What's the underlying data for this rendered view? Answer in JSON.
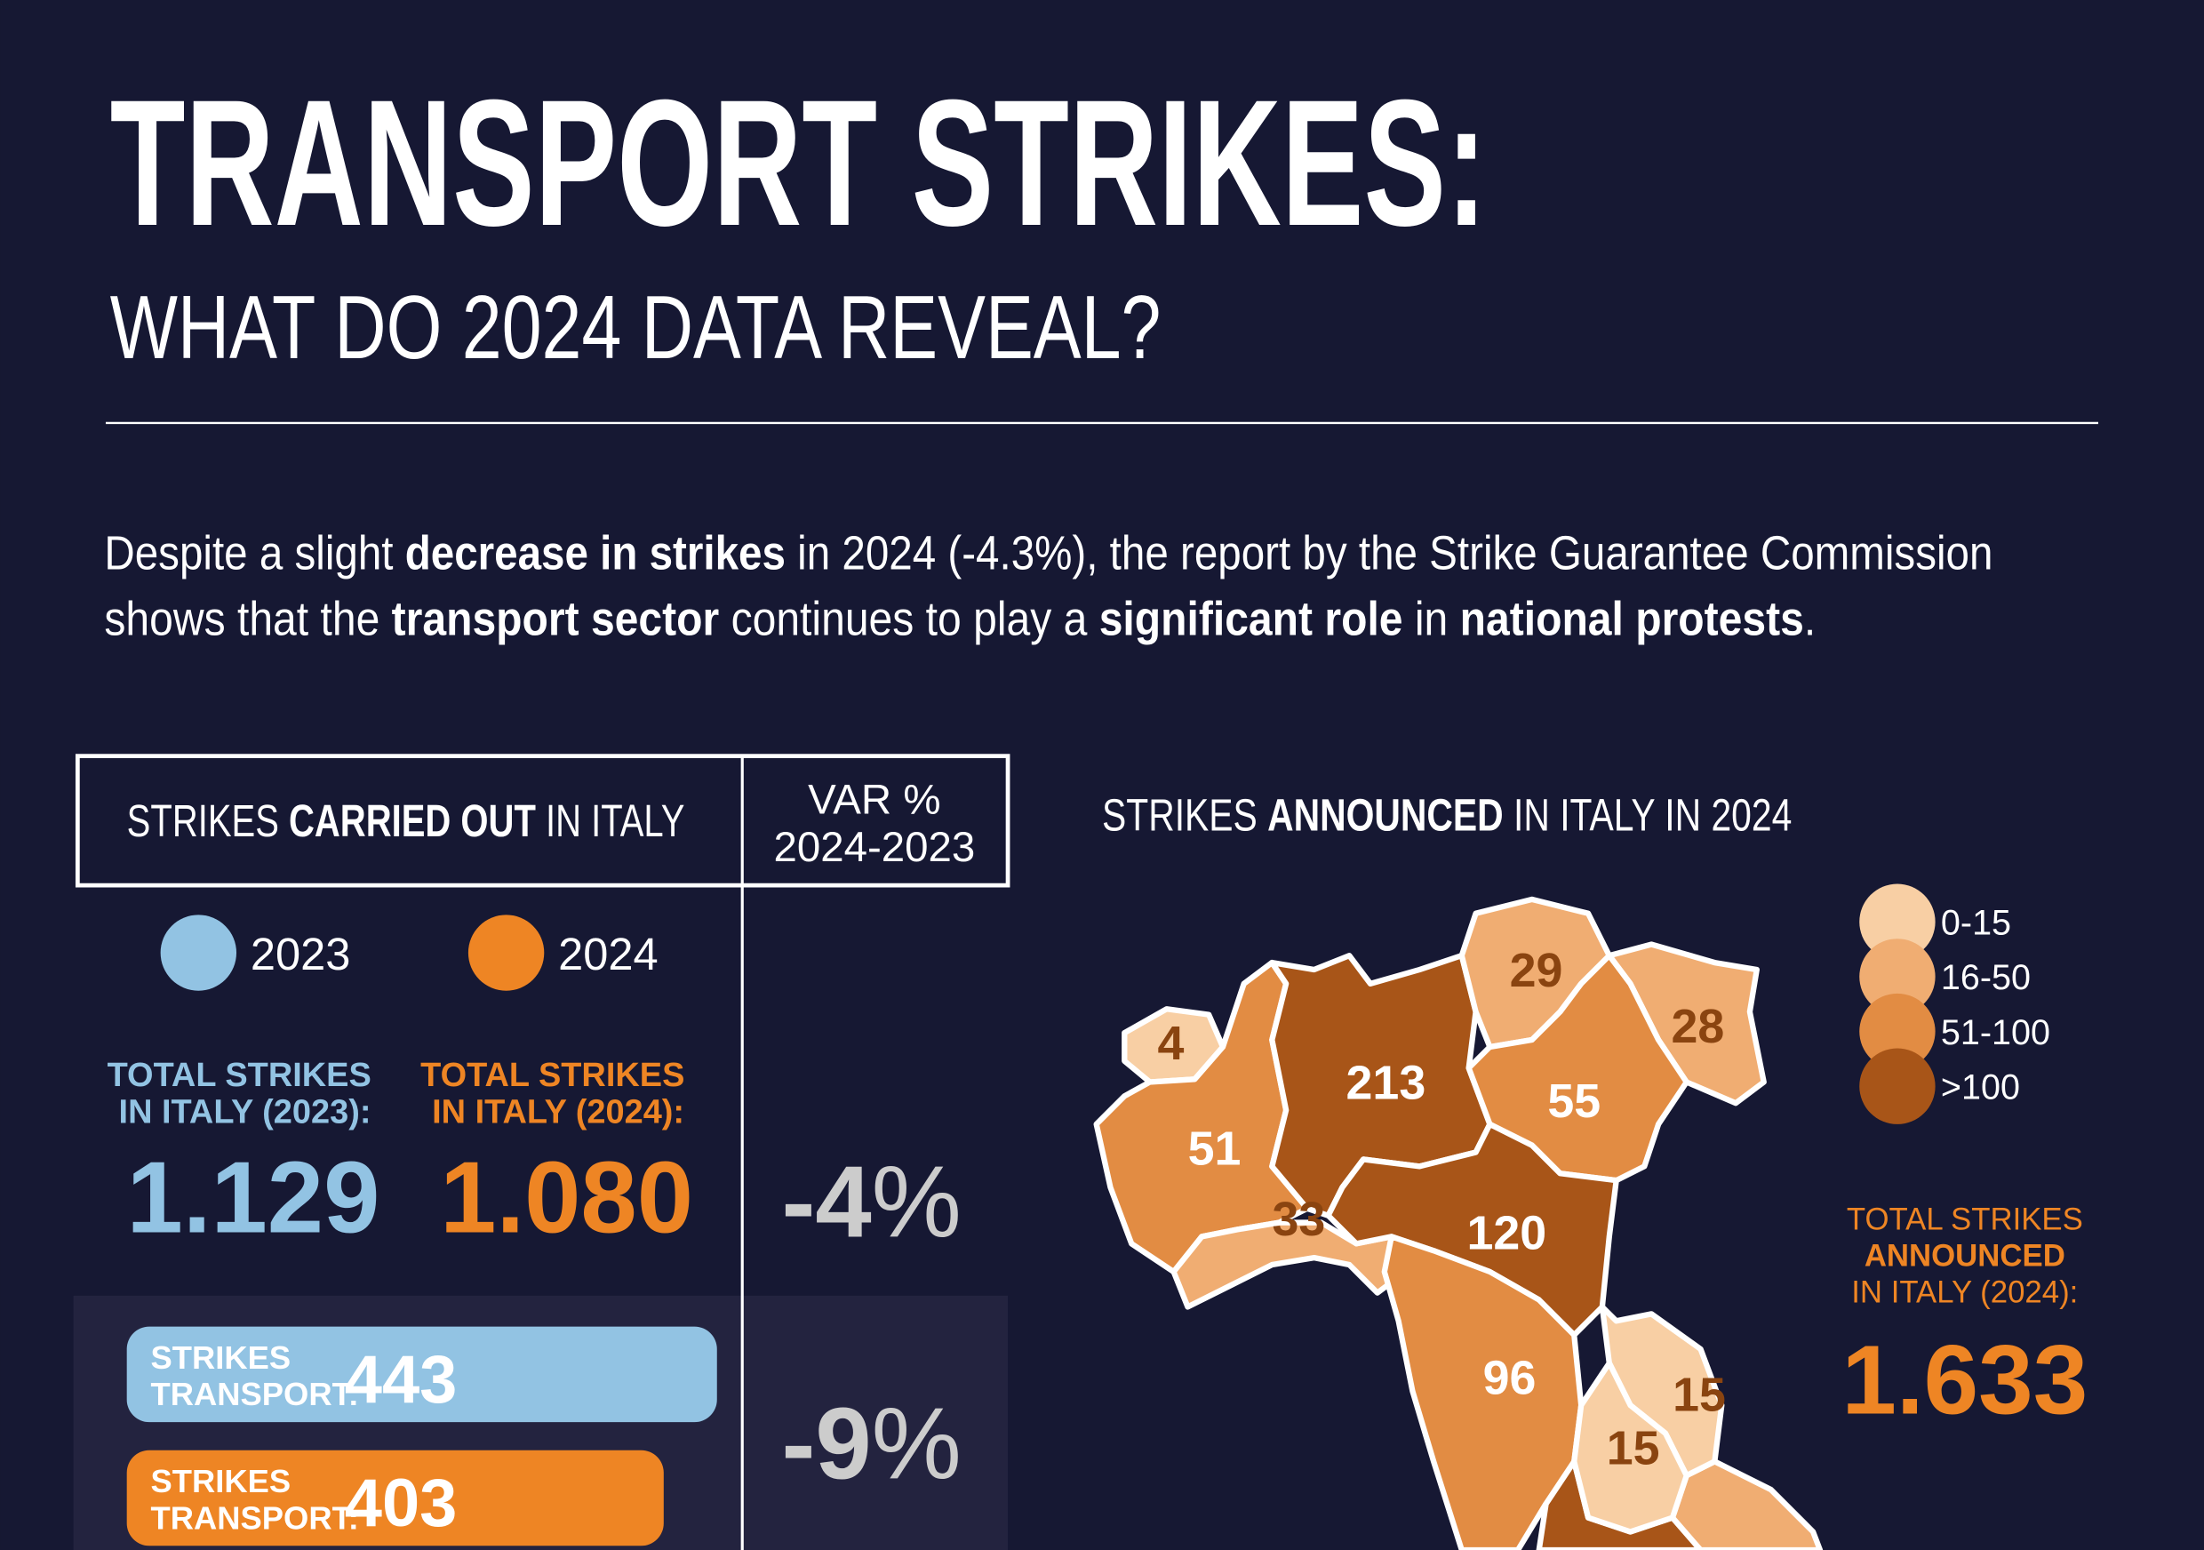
{
  "header": {
    "title": "TRANSPORT STRIKES:",
    "subtitle": "WHAT DO 2024 DATA REVEAL?"
  },
  "intro": {
    "lines": [
      [
        {
          "text": "Despite a slight ",
          "bold": false
        },
        {
          "text": "decrease in strikes",
          "bold": true
        },
        {
          "text": " in 2024 (-4.3%), the report by the Strike Guarantee Commission",
          "bold": false
        }
      ],
      [
        {
          "text": "shows that the ",
          "bold": false
        },
        {
          "text": "transport sector",
          "bold": true
        },
        {
          "text": " continues to play a ",
          "bold": false
        },
        {
          "text": "significant role",
          "bold": true
        },
        {
          "text": " in ",
          "bold": false
        },
        {
          "text": "national protests",
          "bold": true
        },
        {
          "text": ".",
          "bold": false
        }
      ]
    ]
  },
  "table": {
    "title": [
      {
        "text": "STRIKES ",
        "bold": false
      },
      {
        "text": "CARRIED OUT",
        "bold": true
      },
      {
        "text": " IN ITALY",
        "bold": false
      }
    ],
    "var_header": [
      "VAR %",
      "2024-2023"
    ],
    "legend": [
      {
        "label": "2023",
        "color": "#92c3e3"
      },
      {
        "label": "2024",
        "color": "#ee8524"
      }
    ],
    "totals": [
      {
        "label": [
          "TOTAL STRIKES",
          "IN ITALY (2023):"
        ],
        "value": "1.129",
        "color": "#92c3e3"
      },
      {
        "label": [
          "TOTAL STRIKES",
          "IN ITALY (2024):"
        ],
        "value": "1.080",
        "color": "#ee8524"
      }
    ],
    "total_var": {
      "number": "-4",
      "unit": "%"
    },
    "transport": [
      {
        "label": [
          "STRIKES",
          "TRANSPORT:"
        ],
        "value": 443,
        "color": "#92c3e3"
      },
      {
        "label": [
          "STRIKES",
          "TRANSPORT:"
        ],
        "value": 403,
        "color": "#ee8524"
      }
    ],
    "transport_var": {
      "number": "-9",
      "unit": "%"
    }
  },
  "map": {
    "title": [
      {
        "text": "STRIKES ",
        "bold": false
      },
      {
        "text": "ANNOUNCED",
        "bold": true
      },
      {
        "text": " IN ITALY IN 2024",
        "bold": false
      }
    ],
    "legend": [
      {
        "label": "0-15",
        "color": "#f8cfa4"
      },
      {
        "label": "16-50",
        "color": "#f0ad72"
      },
      {
        "label": "51-100",
        "color": "#e28c43"
      },
      {
        "label": ">100",
        "color": "#a85518"
      }
    ],
    "regions": [
      {
        "value": 4,
        "color": "#f8cfa4"
      },
      {
        "value": 51,
        "color": "#e28c43"
      },
      {
        "value": 33,
        "color": "#f0ad72"
      },
      {
        "value": 213,
        "color": "#a85518"
      },
      {
        "value": 29,
        "color": "#f0ad72"
      },
      {
        "value": 28,
        "color": "#f0ad72"
      },
      {
        "value": 55,
        "color": "#e28c43"
      },
      {
        "value": 120,
        "color": "#a85518"
      },
      {
        "value": 96,
        "color": "#e28c43"
      },
      {
        "value": 15,
        "color": "#f8cfa4"
      },
      {
        "value": 15,
        "color": "#f8cfa4"
      }
    ],
    "total": {
      "label": [
        "TOTAL STRIKES",
        "ANNOUNCED",
        "IN ITALY (2024):"
      ],
      "value": "1.633"
    }
  }
}
